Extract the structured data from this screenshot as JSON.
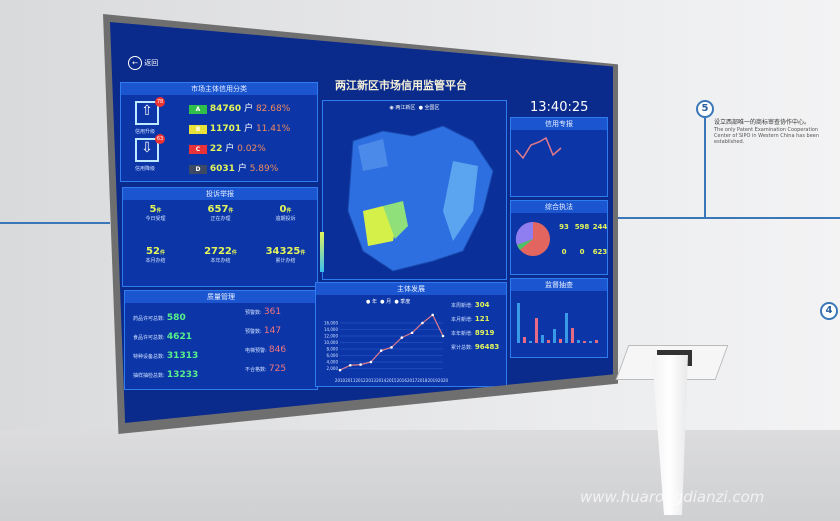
{
  "screen": {
    "back_label": "返回",
    "title": "两江新区市场信用监管平台",
    "time": "13:40:25",
    "credit": {
      "title": "市场主体信用分类",
      "upgrade_label": "信用升级",
      "upgrade_count": "78",
      "downgrade_label": "信用降级",
      "downgrade_count": "63",
      "unit": "户",
      "rows": [
        {
          "grade": "A",
          "count": "84760",
          "pct": "82.68%",
          "color": "#2fbf4a"
        },
        {
          "grade": "B",
          "count": "11701",
          "pct": "11.41%",
          "color": "#e8e23a"
        },
        {
          "grade": "C",
          "count": "22",
          "pct": "0.02%",
          "color": "#e8323a"
        },
        {
          "grade": "D",
          "count": "6031",
          "pct": "5.89%",
          "color": "#3d4a66"
        }
      ]
    },
    "complaints": {
      "title": "投诉举报",
      "unit": "件",
      "cells": [
        {
          "value": "5",
          "label": "今日受理"
        },
        {
          "value": "657",
          "label": "正在办理"
        },
        {
          "value": "0",
          "label": "逾期投诉"
        },
        {
          "value": "52",
          "label": "本月办结"
        },
        {
          "value": "2722",
          "label": "本年办结"
        },
        {
          "value": "34325",
          "label": "累计办结"
        }
      ]
    },
    "quality": {
      "title": "质量管理",
      "left": [
        {
          "label": "药品许可总数:",
          "value": "580"
        },
        {
          "label": "食品许可总数:",
          "value": "4621"
        },
        {
          "label": "特种设备总数:",
          "value": "31313"
        },
        {
          "label": "抽样抽检总数:",
          "value": "13233"
        }
      ],
      "right": [
        {
          "label": "预警数:",
          "value": "361"
        },
        {
          "label": "预警数:",
          "value": "147"
        },
        {
          "label": "电梯预警:",
          "value": "846"
        },
        {
          "label": "不合格数:",
          "value": "725"
        }
      ]
    },
    "map": {
      "legend": [
        "两江新区",
        "全国区"
      ]
    },
    "development": {
      "title": "主体发展",
      "legend": [
        "年",
        "月",
        "季度"
      ],
      "stats": [
        {
          "label": "本周新增:",
          "value": "304"
        },
        {
          "label": "本月新增:",
          "value": "121"
        },
        {
          "label": "本年新增:",
          "value": "8919"
        },
        {
          "label": "累计总数:",
          "value": "96483"
        }
      ]
    },
    "right_top": {
      "title": "信用专报"
    },
    "enforcement": {
      "title": "综合执法",
      "cells": [
        "93",
        "598",
        "244",
        "0",
        "0",
        "623"
      ]
    },
    "supervision": {
      "title": "监督抽查"
    }
  },
  "chart_data": {
    "type": "line",
    "x": [
      "2010",
      "2011",
      "2012",
      "2013",
      "2014",
      "2015",
      "2016",
      "2017",
      "2018",
      "2019",
      "2020"
    ],
    "values": [
      1500,
      3000,
      3200,
      4000,
      7500,
      8500,
      11500,
      13000,
      16000,
      18500,
      12000
    ],
    "yticks": [
      "2,000",
      "4,000",
      "6,000",
      "8,000",
      "10,000",
      "12,000",
      "14,000",
      "16,000"
    ],
    "ylim": [
      0,
      20000
    ],
    "line_color": "#e07a8a"
  },
  "wall": {
    "step5": "5",
    "step4": "4",
    "caption_cn": "设立西部唯一的商标审查协作中心。",
    "caption_en": "The only Patent Examination Cooperation Center of SIPO in Western China has been established.",
    "watermark": "www.huarongdianzi.com"
  }
}
